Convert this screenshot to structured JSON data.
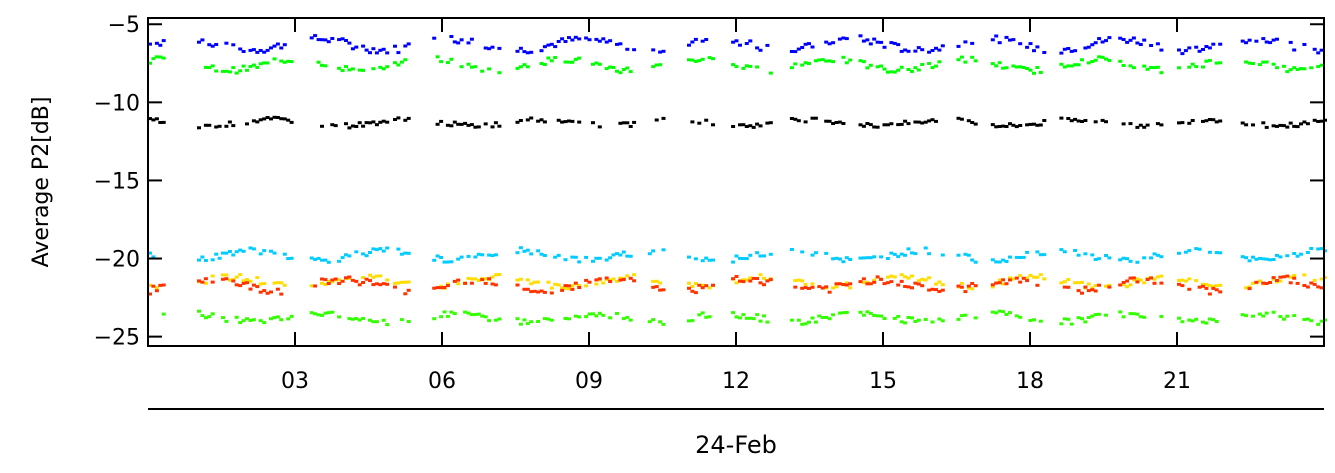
{
  "chart_data": {
    "type": "scatter",
    "title": "",
    "ylabel": "Average P2[dB]",
    "xlabel": "24-Feb",
    "xlim": [
      0,
      24
    ],
    "ylim": [
      -25.6,
      -4.6
    ],
    "x_ticks": [
      3,
      6,
      9,
      12,
      15,
      18,
      21
    ],
    "x_tick_labels": [
      "03",
      "06",
      "09",
      "12",
      "15",
      "18",
      "21"
    ],
    "y_ticks": [
      -5,
      -10,
      -15,
      -20,
      -25
    ],
    "y_tick_labels": [
      "−5",
      "−10",
      "−15",
      "−20",
      "−25"
    ],
    "grid": false,
    "segment_starts": [
      0.0,
      1.0,
      3.3,
      5.0,
      5.8,
      7.5,
      8.9,
      10.2,
      11.0,
      11.9,
      13.1,
      14.5,
      16.5,
      17.2,
      18.6,
      19.8,
      21.0,
      22.3
    ],
    "segment_ends": [
      0.3,
      2.9,
      4.9,
      5.3,
      7.2,
      8.8,
      9.9,
      10.5,
      11.5,
      12.7,
      14.3,
      16.2,
      16.9,
      18.3,
      19.6,
      20.7,
      21.9,
      24.0
    ],
    "series": [
      {
        "color": "#0000ff",
        "base": -6.3,
        "amp": 0.35,
        "noise": 0.25
      },
      {
        "color": "#00ff00",
        "base": -7.6,
        "amp": 0.35,
        "noise": 0.2
      },
      {
        "color": "#000000",
        "base": -11.3,
        "amp": 0.2,
        "noise": 0.15
      },
      {
        "color": "#00ccff",
        "base": -19.8,
        "amp": 0.3,
        "noise": 0.2
      },
      {
        "color": "#ffdd00",
        "base": -21.5,
        "amp": 0.3,
        "noise": 0.2
      },
      {
        "color": "#ff3300",
        "base": -21.7,
        "amp": 0.35,
        "noise": 0.25
      },
      {
        "color": "#33ff00",
        "base": -23.8,
        "amp": 0.25,
        "noise": 0.2
      }
    ]
  }
}
